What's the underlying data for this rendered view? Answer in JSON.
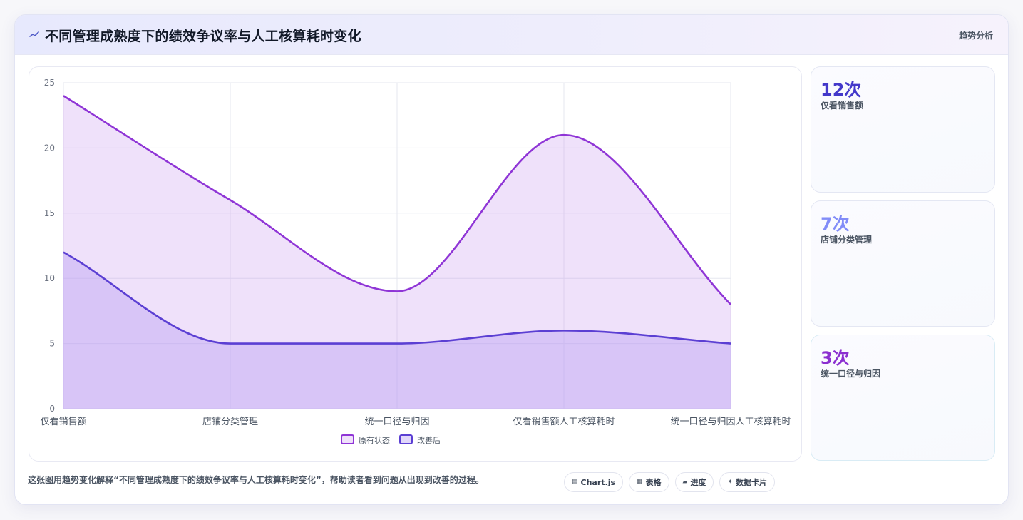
{
  "header": {
    "icon": "trend-line-icon",
    "title": "不同管理成熟度下的绩效争议率与人工核算耗时变化",
    "tag": "趋势分析"
  },
  "chart_data": {
    "type": "area",
    "categories": [
      "仅看销售额",
      "店铺分类管理",
      "统一口径与归因",
      "仅看销售额人工核算耗时",
      "统一口径与归因人工核算耗时"
    ],
    "series": [
      {
        "name": "原有状态",
        "values": [
          24,
          16,
          9,
          21,
          8
        ],
        "color": "#8f35d6",
        "fill": "rgba(196, 146, 236, 0.28)"
      },
      {
        "name": "改善后",
        "values": [
          12,
          5,
          5,
          6,
          5
        ],
        "color": "#5b3fd3",
        "fill": "rgba(183, 160, 243, 0.42)"
      }
    ],
    "ylim": [
      0,
      25
    ],
    "yticks": [
      0,
      5,
      10,
      15,
      20,
      25
    ],
    "grid": true,
    "legend": "bottom",
    "smooth": true
  },
  "stats": [
    {
      "value": "12次",
      "label": "仅看销售额",
      "color": "#4338ca"
    },
    {
      "value": "7次",
      "label": "店铺分类管理",
      "color": "#818cf8"
    },
    {
      "value": "3次",
      "label": "统一口径与归因",
      "color": "#8b2fd0"
    }
  ],
  "footer": {
    "text": "这张图用趋势变化解释“不同管理成熟度下的绩效争议率与人工核算耗时变化”，帮助读者看到问题从出现到改善的过程。",
    "pills": [
      {
        "icon": "chart-icon",
        "label": "Chart.js"
      },
      {
        "icon": "table-icon",
        "label": "表格"
      },
      {
        "icon": "progress-icon",
        "label": "进度"
      },
      {
        "icon": "card-icon",
        "label": "数据卡片"
      }
    ]
  }
}
